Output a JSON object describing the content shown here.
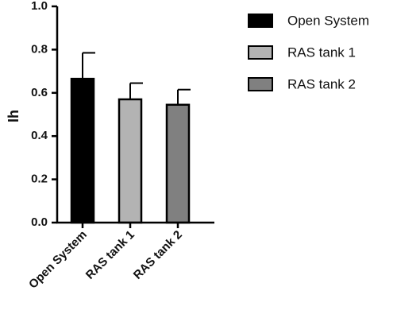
{
  "chart_data": {
    "type": "bar",
    "title": "",
    "xlabel": "",
    "ylabel": "Ih",
    "ylim": [
      0,
      1.0
    ],
    "yticks": [
      "0.0",
      "0.2",
      "0.4",
      "0.6",
      "0.8",
      "1.0"
    ],
    "categories": [
      "Open System",
      "RAS tank 1",
      "RAS tank 2"
    ],
    "series": [
      {
        "values": [
          0.665,
          0.57,
          0.545
        ],
        "error_upper": [
          0.12,
          0.075,
          0.07
        ]
      }
    ],
    "bar_colors": [
      "#000000",
      "#b3b3b3",
      "#808080"
    ],
    "legend": {
      "placement": "top-right",
      "entries": [
        "Open System",
        "RAS tank 1",
        "RAS tank 2"
      ]
    },
    "grid": false
  }
}
